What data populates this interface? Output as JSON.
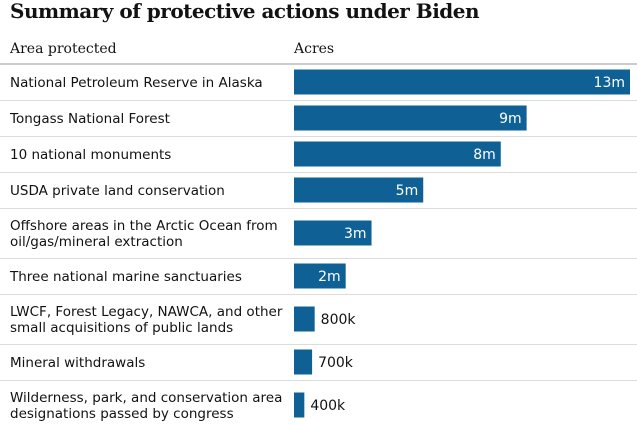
{
  "title": "Summary of protective actions under Biden",
  "headers": {
    "area": "Area protected",
    "acres": "Acres"
  },
  "colors": {
    "bar": "#0f6195",
    "text": "#121212",
    "rule": "#dcdcdc",
    "value_inside": "#ffffff"
  },
  "chart_data": {
    "type": "bar",
    "orientation": "horizontal",
    "title": "Summary of protective actions under Biden",
    "xlabel": "Acres",
    "ylabel": "Area protected",
    "xlim": [
      0,
      13000000
    ],
    "categories": [
      "National Petroleum Reserve in Alaska",
      "Tongass National Forest",
      "10 national monuments",
      "USDA private land conservation",
      "Offshore areas in the Arctic Ocean from oil/gas/mineral extraction",
      "Three national marine sanctuaries",
      "LWCF, Forest Legacy, NAWCA, and other small acquisitions of public lands",
      "Mineral withdrawals",
      "Wilderness, park, and conservation area designations passed by congress"
    ],
    "category_lines": [
      [
        "National Petroleum Reserve in Alaska"
      ],
      [
        "Tongass National Forest"
      ],
      [
        "10 national monuments"
      ],
      [
        "USDA private land conservation"
      ],
      [
        "Offshore areas in the Arctic Ocean from",
        "oil/gas/mineral extraction"
      ],
      [
        "Three national marine sanctuaries"
      ],
      [
        "LWCF, Forest Legacy, NAWCA, and other",
        "small acquisitions of public lands"
      ],
      [
        "Mineral withdrawals"
      ],
      [
        "Wilderness, park, and conservation area",
        "designations passed by congress"
      ]
    ],
    "values": [
      13000000,
      9000000,
      8000000,
      5000000,
      3000000,
      2000000,
      800000,
      700000,
      400000
    ],
    "value_labels": [
      "13m",
      "9m",
      "8m",
      "5m",
      "3m",
      "2m",
      "800k",
      "700k",
      "400k"
    ],
    "grid": false
  }
}
